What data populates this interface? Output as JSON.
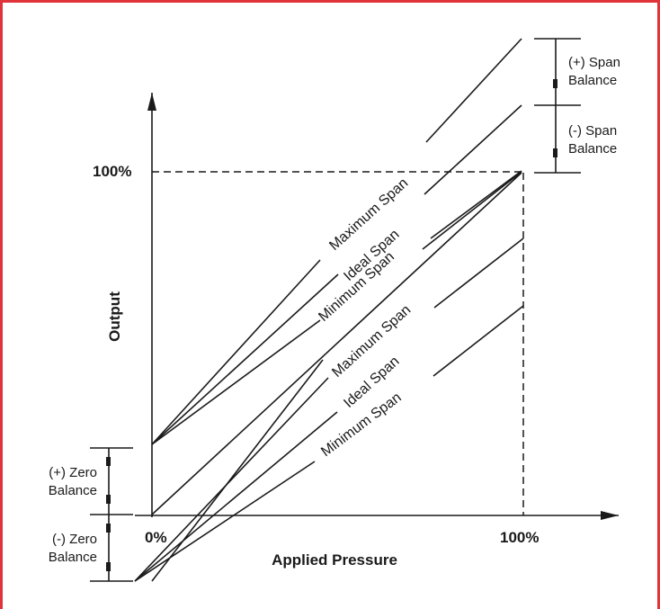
{
  "frame": {
    "border_color": "#e0343b"
  },
  "axes": {
    "x_title": "Applied Pressure",
    "y_title": "Output",
    "x_start": "0%",
    "x_end": "100%",
    "y_top": "100%"
  },
  "upper_family": {
    "labels": [
      "Maximum Span",
      "Ideal Span",
      "Minimum Span"
    ]
  },
  "lower_family": {
    "labels": [
      "Maximum Span",
      "Ideal Span",
      "Minimum Span"
    ]
  },
  "span_brackets": {
    "plus": [
      "(+) Span",
      "Balance"
    ],
    "minus": [
      "(-) Span",
      "Balance"
    ]
  },
  "zero_brackets": {
    "plus": [
      "(+) Zero",
      "Balance"
    ],
    "minus": [
      "(-) Zero",
      "Balance"
    ]
  }
}
